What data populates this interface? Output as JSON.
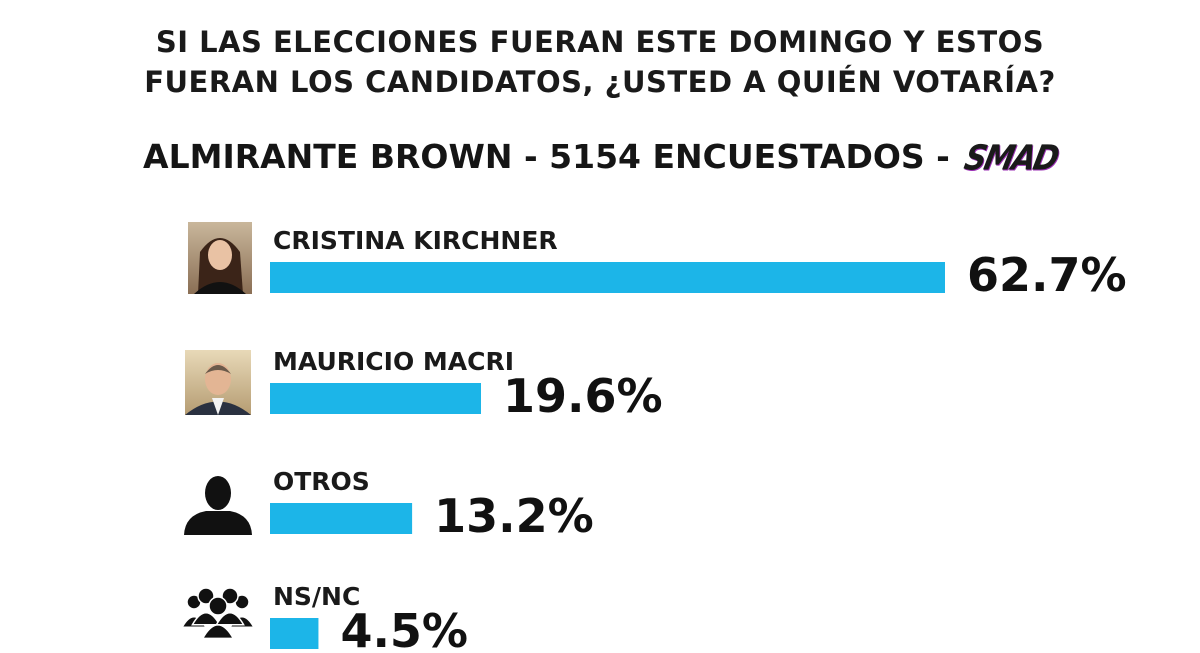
{
  "header": {
    "question_line1": "SI LAS ELECCIONES FUERAN ESTE DOMINGO Y ESTOS",
    "question_line2": "FUERAN LOS CANDIDATOS, ¿USTED A QUIÉN VOTARÍA?",
    "subtitle": "ALMIRANTE BROWN - 5154 ENCUESTADOS -",
    "brand": "SMAD"
  },
  "colors": {
    "bar": "#1CB5E8",
    "text": "#111111"
  },
  "chart_data": {
    "type": "bar",
    "orientation": "horizontal",
    "title": "SI LAS ELECCIONES FUERAN ESTE DOMINGO Y ESTOS FUERAN LOS CANDIDATOS, ¿USTED A QUIÉN VOTARÍA?",
    "subtitle": "ALMIRANTE BROWN - 5154 ENCUESTADOS - SMAD",
    "categories": [
      "CRISTINA KIRCHNER",
      "MAURICIO MACRI",
      "OTROS",
      "NS/NC"
    ],
    "values": [
      62.7,
      19.6,
      13.2,
      4.5
    ],
    "value_labels": [
      "62.7%",
      "19.6%",
      "13.2%",
      "4.5%"
    ],
    "icons": [
      "photo-woman-icon",
      "photo-man-icon",
      "person-silhouette-icon",
      "group-people-icon"
    ],
    "unit": "%",
    "xlim": [
      0,
      62.7
    ],
    "grid": false,
    "legend": "none"
  }
}
